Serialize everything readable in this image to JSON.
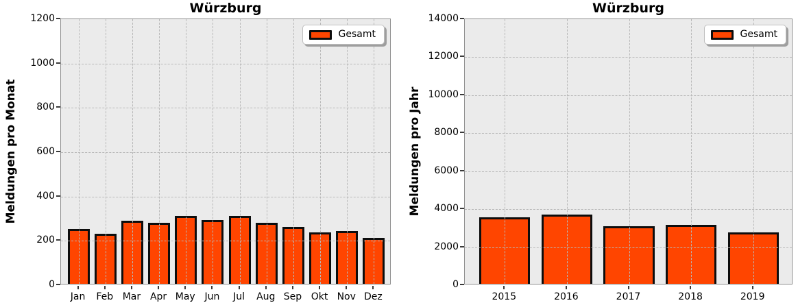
{
  "colors": {
    "bar_fill": "#ff4500",
    "bar_edge": "#0d0d0d",
    "plot_background": "#ebebeb",
    "gridline": "#b8b8b8",
    "spine": "#8f8f8f",
    "legend_background": "#ffffff",
    "legend_shadow": "#9e9e9e",
    "text": "#000000"
  },
  "chart_data": [
    {
      "type": "bar",
      "title": "Würzburg",
      "ylabel": "Meldungen pro Monat",
      "xlabel": "",
      "grid": "dashed, drawn above bars",
      "legend_position": "upper right",
      "legend_entries": [
        "Gesamt"
      ],
      "categories": [
        "Jan",
        "Feb",
        "Mar",
        "Apr",
        "May",
        "Jun",
        "Jul",
        "Aug",
        "Sep",
        "Okt",
        "Nov",
        "Dez"
      ],
      "series": [
        {
          "name": "Gesamt",
          "values": [
            248,
            227,
            284,
            274,
            305,
            287,
            305,
            275,
            257,
            233,
            239,
            207
          ]
        }
      ],
      "ylim": [
        0,
        1200
      ],
      "yticks": [
        0,
        200,
        400,
        600,
        800,
        1000,
        1200
      ]
    },
    {
      "type": "bar",
      "title": "Würzburg",
      "ylabel": "Meldungen pro Jahr",
      "xlabel": "",
      "grid": "dashed, drawn above bars",
      "legend_position": "upper right",
      "legend_entries": [
        "Gesamt"
      ],
      "categories": [
        "2015",
        "2016",
        "2017",
        "2018",
        "2019"
      ],
      "series": [
        {
          "name": "Gesamt",
          "values": [
            3510,
            3650,
            3030,
            3120,
            2700
          ]
        }
      ],
      "ylim": [
        0,
        14000
      ],
      "yticks": [
        0,
        2000,
        4000,
        6000,
        8000,
        10000,
        12000,
        14000
      ]
    }
  ]
}
